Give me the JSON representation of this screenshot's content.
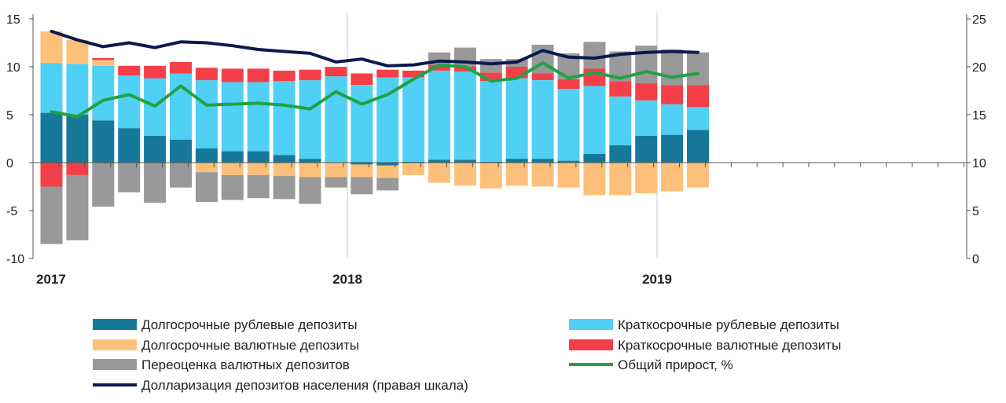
{
  "chart_data": {
    "type": "bar",
    "x": [
      "2017-01",
      "2017-02",
      "2017-03",
      "2017-04",
      "2017-05",
      "2017-06",
      "2017-07",
      "2017-08",
      "2017-09",
      "2017-10",
      "2017-11",
      "2017-12",
      "2018-01",
      "2018-02",
      "2018-03",
      "2018-04",
      "2018-05",
      "2018-06",
      "2018-07",
      "2018-08",
      "2018-09",
      "2018-10",
      "2018-11",
      "2018-12",
      "2019-01",
      "2019-02"
    ],
    "x_tick_labels": [
      "2017",
      "2018",
      "2019"
    ],
    "left_axis": {
      "ylim": [
        -10,
        15
      ],
      "ticks": [
        -10,
        -5,
        0,
        5,
        10,
        15
      ]
    },
    "right_axis": {
      "ylim": [
        0,
        25
      ],
      "ticks": [
        0,
        5,
        10,
        15,
        20,
        25
      ]
    },
    "grid": "vertical lines at year boundaries",
    "legend_position": "bottom",
    "series": [
      {
        "name": "Долгосрочные рублевые депозиты",
        "kind": "bar",
        "stack": "pos",
        "color": "#17799a",
        "values": [
          5.2,
          5.0,
          4.4,
          3.6,
          2.8,
          2.4,
          1.5,
          1.2,
          1.2,
          0.8,
          0.4,
          0.0,
          -0.2,
          -0.3,
          0.1,
          0.3,
          0.3,
          0.1,
          0.4,
          0.4,
          0.2,
          0.9,
          1.8,
          2.8,
          2.9,
          3.4
        ]
      },
      {
        "name": "Краткосрочные рублевые депозиты",
        "kind": "bar",
        "stack": "pos",
        "color": "#4fd0f4",
        "values": [
          5.2,
          5.3,
          5.7,
          5.5,
          6.0,
          6.9,
          7.1,
          7.2,
          7.2,
          7.7,
          8.2,
          9.0,
          8.1,
          8.9,
          8.8,
          9.3,
          9.2,
          8.4,
          8.4,
          8.2,
          7.5,
          7.1,
          5.1,
          3.7,
          3.2,
          2.4
        ]
      },
      {
        "name": "Долгосрочные валютные депозиты",
        "kind": "bar",
        "stack": "mixed",
        "color": "#fdc07a",
        "values": [
          3.3,
          2.5,
          0.6,
          0.0,
          0.0,
          0.0,
          -1.0,
          -1.3,
          -1.3,
          -1.4,
          -1.5,
          -1.5,
          -1.3,
          -1.3,
          -1.3,
          -2.1,
          -2.4,
          -2.7,
          -2.4,
          -2.5,
          -2.6,
          -3.4,
          -3.4,
          -3.2,
          -3.0,
          -2.6
        ]
      },
      {
        "name": "Краткосрочные валютные депозиты",
        "kind": "bar",
        "stack": "mixed",
        "color": "#f43f48",
        "values": [
          -2.5,
          -1.3,
          0.2,
          1.0,
          1.3,
          1.2,
          1.3,
          1.4,
          1.4,
          1.1,
          1.1,
          1.0,
          1.2,
          0.8,
          0.7,
          0.6,
          0.5,
          0.9,
          1.2,
          0.7,
          1.0,
          1.8,
          1.6,
          1.8,
          2.0,
          2.3
        ]
      },
      {
        "name": "Переоценка валютных депозитов",
        "kind": "bar",
        "stack": "mixed",
        "color": "#999999",
        "values": [
          -6.0,
          -6.8,
          -4.6,
          -3.1,
          -4.2,
          -2.6,
          -3.1,
          -2.6,
          -2.4,
          -2.4,
          -2.8,
          -1.1,
          -1.8,
          -1.3,
          0.0,
          1.3,
          2.0,
          1.4,
          0.8,
          3.0,
          2.7,
          2.8,
          3.1,
          3.9,
          3.7,
          3.4
        ]
      },
      {
        "name": "Общий прирост, %",
        "kind": "line",
        "axis": "left",
        "color": "#21a245",
        "values": [
          5.3,
          4.8,
          6.5,
          7.1,
          5.9,
          8.0,
          6.0,
          6.1,
          6.2,
          6.0,
          5.6,
          7.4,
          6.1,
          7.1,
          8.7,
          10.2,
          10.0,
          8.5,
          8.8,
          10.4,
          8.8,
          9.4,
          8.8,
          9.5,
          8.9,
          9.3
        ]
      },
      {
        "name": "Долларизация депозитов населения (правая шкала)",
        "kind": "line",
        "axis": "right",
        "color": "#0b1a4e",
        "values": [
          23.7,
          22.8,
          22.1,
          22.5,
          22.0,
          22.6,
          22.5,
          22.2,
          21.8,
          21.6,
          21.4,
          20.5,
          20.8,
          20.1,
          20.2,
          20.6,
          20.5,
          20.3,
          20.5,
          21.7,
          21.0,
          20.9,
          21.3,
          21.5,
          21.6,
          21.5
        ]
      }
    ]
  }
}
